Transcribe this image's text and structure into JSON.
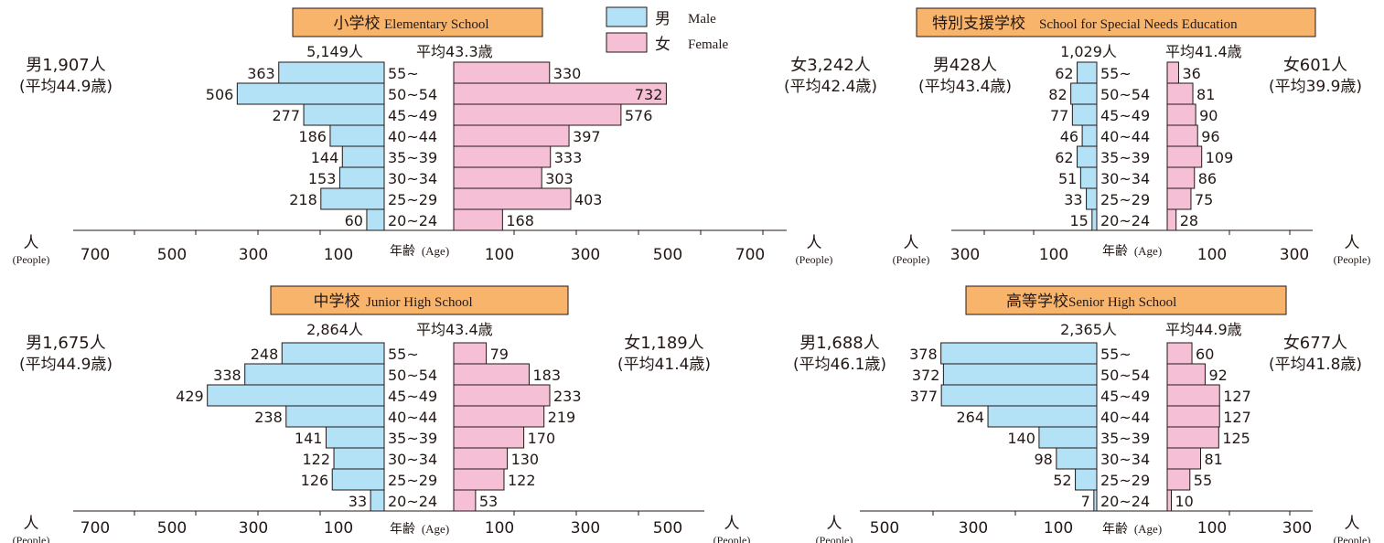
{
  "legend": {
    "male_label": "男",
    "male_en": "Male",
    "female_label": "女",
    "female_en": "Female",
    "male_color": "#b3e1f6",
    "female_color": "#f5bfd6"
  },
  "colors": {
    "title_box": "#f8b46b",
    "male": "#b3e1f6",
    "female": "#f5bfd6",
    "stroke": "#231815"
  },
  "chart_data": [
    {
      "type": "bar",
      "title_jp": "小学校",
      "title_en": "Elementary School",
      "total": "5,149人",
      "avg": "平均43.3歳",
      "male_total": "男1,907人",
      "male_avg": "(平均44.9歳)",
      "female_total": "女3,242人",
      "female_avg": "(平均42.4歳)",
      "categories": [
        "55~",
        "50~54",
        "45~49",
        "40~44",
        "35~39",
        "30~34",
        "25~29",
        "20~24"
      ],
      "series": [
        {
          "name": "男",
          "values": [
            363,
            506,
            277,
            186,
            144,
            153,
            218,
            60
          ]
        },
        {
          "name": "女",
          "values": [
            330,
            732,
            576,
            397,
            333,
            303,
            403,
            168
          ]
        }
      ],
      "xlim": [
        0,
        700
      ],
      "male_ticks": [
        "700",
        "500",
        "300",
        "100"
      ],
      "female_ticks": [
        "100",
        "300",
        "500",
        "700"
      ],
      "center_axis_label": "年齢",
      "center_axis_en": "(Age)",
      "unit_label": "人",
      "unit_en": "(People)"
    },
    {
      "type": "bar",
      "title_jp": "特別支援学校",
      "title_en": "School for Special Needs Education",
      "total": "1,029人",
      "avg": "平均41.4歳",
      "male_total": "男428人",
      "male_avg": "(平均43.4歳)",
      "female_total": "女601人",
      "female_avg": "(平均39.9歳)",
      "categories": [
        "55~",
        "50~54",
        "45~49",
        "40~44",
        "35~39",
        "30~34",
        "25~29",
        "20~24"
      ],
      "series": [
        {
          "name": "男",
          "values": [
            62,
            82,
            77,
            46,
            62,
            51,
            33,
            15
          ]
        },
        {
          "name": "女",
          "values": [
            36,
            81,
            90,
            96,
            109,
            86,
            75,
            28
          ]
        }
      ],
      "xlim": [
        0,
        300
      ],
      "male_ticks": [
        "300",
        "100"
      ],
      "female_ticks": [
        "100",
        "300"
      ],
      "center_axis_label": "年齢",
      "center_axis_en": "(Age)",
      "unit_label": "人",
      "unit_en": "(People)"
    },
    {
      "type": "bar",
      "title_jp": "中学校",
      "title_en": "Junior High School",
      "total": "2,864人",
      "avg": "平均43.4歳",
      "male_total": "男1,675人",
      "male_avg": "(平均44.9歳)",
      "female_total": "女1,189人",
      "female_avg": "(平均41.4歳)",
      "categories": [
        "55~",
        "50~54",
        "45~49",
        "40~44",
        "35~39",
        "30~34",
        "25~29",
        "20~24"
      ],
      "series": [
        {
          "name": "男",
          "values": [
            248,
            338,
            429,
            238,
            141,
            122,
            126,
            33
          ]
        },
        {
          "name": "女",
          "values": [
            79,
            183,
            233,
            219,
            170,
            130,
            122,
            53
          ]
        }
      ],
      "xlim": [
        0,
        700
      ],
      "male_ticks": [
        "700",
        "500",
        "300",
        "100"
      ],
      "female_ticks": [
        "100",
        "300",
        "500"
      ],
      "center_axis_label": "年齢",
      "center_axis_en": "(Age)",
      "unit_label": "人",
      "unit_en": "(People)"
    },
    {
      "type": "bar",
      "title_jp": "高等学校",
      "title_en": "Senior High School",
      "total": "2,365人",
      "avg": "平均44.9歳",
      "male_total": "男1,688人",
      "male_avg": "(平均46.1歳)",
      "female_total": "女677人",
      "female_avg": "(平均41.8歳)",
      "categories": [
        "55~",
        "50~54",
        "45~49",
        "40~44",
        "35~39",
        "30~34",
        "25~29",
        "20~24"
      ],
      "series": [
        {
          "name": "男",
          "values": [
            378,
            372,
            377,
            264,
            140,
            98,
            52,
            7
          ]
        },
        {
          "name": "女",
          "values": [
            60,
            92,
            127,
            127,
            125,
            81,
            55,
            10
          ]
        }
      ],
      "xlim": [
        0,
        500
      ],
      "male_ticks": [
        "500",
        "300",
        "100"
      ],
      "female_ticks": [
        "100",
        "300"
      ],
      "center_axis_label": "年齢",
      "center_axis_en": "(Age)",
      "unit_label": "人",
      "unit_en": "(People)"
    }
  ]
}
